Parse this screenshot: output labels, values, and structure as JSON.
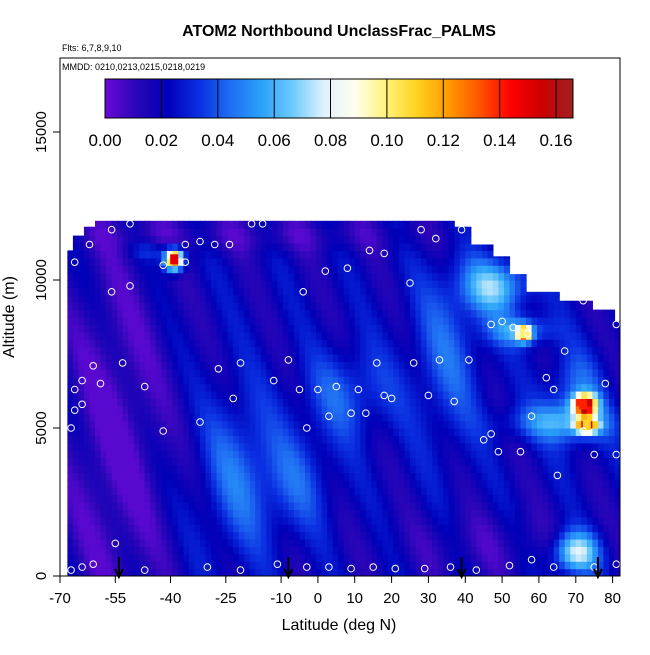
{
  "chart_data": {
    "type": "heatmap",
    "title": "ATOM2 Northbound UnclassFrac_PALMS",
    "flights_label": "Flts: 6,7,8,9,10",
    "dates_label": "MMDD: 0210,0213,0215,0218,0219",
    "xlabel": "Latitude (deg N)",
    "ylabel": "Altitude (m)",
    "xlim": [
      -70,
      82
    ],
    "ylim": [
      0,
      17500
    ],
    "x_ticks": [
      -70,
      -55,
      -40,
      -25,
      -10,
      0,
      10,
      20,
      30,
      40,
      50,
      60,
      70,
      80
    ],
    "y_ticks": [
      0,
      5000,
      10000,
      15000
    ],
    "colorbar": {
      "min": 0.0,
      "max": 0.166,
      "ticks": [
        "0.00",
        "0.02",
        "0.04",
        "0.06",
        "0.08",
        "0.10",
        "0.12",
        "0.14",
        "0.16"
      ],
      "palette": [
        "#6a0ad8",
        "#2a06b8",
        "#0000b8",
        "#0a2ee0",
        "#1f6cf2",
        "#2aa0fa",
        "#6ccafc",
        "#dff0fc",
        "#fffff0",
        "#fff27a",
        "#ffd21f",
        "#ff9a00",
        "#ff5500",
        "#ff0000",
        "#cc0000",
        "#a02020"
      ]
    },
    "hot_spots": [
      {
        "lat": -39,
        "alt": 10700,
        "value": 0.15
      },
      {
        "lat": 56,
        "alt": 8200,
        "value": 0.1
      },
      {
        "lat": 72,
        "alt": 5800,
        "value": 0.14
      },
      {
        "lat": 73,
        "alt": 5100,
        "value": 0.11
      }
    ],
    "flight_arrows_lat": [
      -54,
      -8,
      39,
      76
    ],
    "sample_points": [
      [
        -67,
        200
      ],
      [
        -64,
        300
      ],
      [
        -61,
        400
      ],
      [
        -55,
        1100
      ],
      [
        -47,
        200
      ],
      [
        -30,
        300
      ],
      [
        -21,
        200
      ],
      [
        -11,
        400
      ],
      [
        -3,
        300
      ],
      [
        3,
        300
      ],
      [
        9,
        250
      ],
      [
        15,
        300
      ],
      [
        21,
        250
      ],
      [
        29,
        250
      ],
      [
        36,
        300
      ],
      [
        43,
        200
      ],
      [
        52,
        350
      ],
      [
        58,
        550
      ],
      [
        64,
        300
      ],
      [
        75,
        300
      ],
      [
        81,
        400
      ],
      [
        -67,
        5000
      ],
      [
        -66,
        5600
      ],
      [
        -64,
        5800
      ],
      [
        -66,
        6300
      ],
      [
        -64,
        6600
      ],
      [
        -61,
        7100
      ],
      [
        -53,
        7200
      ],
      [
        -47,
        6400
      ],
      [
        -42,
        4900
      ],
      [
        -32,
        5200
      ],
      [
        -27,
        7000
      ],
      [
        -23,
        6000
      ],
      [
        -21,
        7200
      ],
      [
        -12,
        6600
      ],
      [
        -8,
        7300
      ],
      [
        -5,
        6300
      ],
      [
        -3,
        5000
      ],
      [
        0,
        6300
      ],
      [
        3,
        5400
      ],
      [
        5,
        6400
      ],
      [
        9,
        5500
      ],
      [
        11,
        6300
      ],
      [
        13,
        5500
      ],
      [
        16,
        7200
      ],
      [
        18,
        6100
      ],
      [
        20,
        6000
      ],
      [
        26,
        7200
      ],
      [
        30,
        6100
      ],
      [
        33,
        7300
      ],
      [
        37,
        5900
      ],
      [
        41,
        7300
      ],
      [
        45,
        4600
      ],
      [
        47,
        4800
      ],
      [
        49,
        4200
      ],
      [
        55,
        4200
      ],
      [
        58,
        5400
      ],
      [
        62,
        6700
      ],
      [
        64,
        6300
      ],
      [
        65,
        3400
      ],
      [
        67,
        7600
      ],
      [
        72,
        4900
      ],
      [
        75,
        4100
      ],
      [
        78,
        6500
      ],
      [
        81,
        4100
      ],
      [
        -59,
        6500
      ],
      [
        -56,
        9600
      ],
      [
        -51,
        9800
      ],
      [
        -42,
        10500
      ],
      [
        -36,
        10600
      ],
      [
        -4,
        9600
      ],
      [
        2,
        10300
      ],
      [
        8,
        10400
      ],
      [
        14,
        11000
      ],
      [
        18,
        10900
      ],
      [
        25,
        9900
      ],
      [
        28,
        11700
      ],
      [
        32,
        11400
      ],
      [
        39,
        11700
      ],
      [
        47,
        8500
      ],
      [
        50,
        8600
      ],
      [
        53,
        8400
      ],
      [
        57,
        8200
      ],
      [
        67,
        9500
      ],
      [
        72,
        9300
      ],
      [
        76,
        9500
      ],
      [
        81,
        8500
      ],
      [
        -66,
        10600
      ],
      [
        -62,
        11200
      ],
      [
        -56,
        11700
      ],
      [
        -51,
        11900
      ],
      [
        -36,
        11200
      ],
      [
        -32,
        11300
      ],
      [
        -28,
        11200
      ],
      [
        -24,
        11200
      ],
      [
        -18,
        11900
      ],
      [
        -15,
        11900
      ]
    ]
  }
}
